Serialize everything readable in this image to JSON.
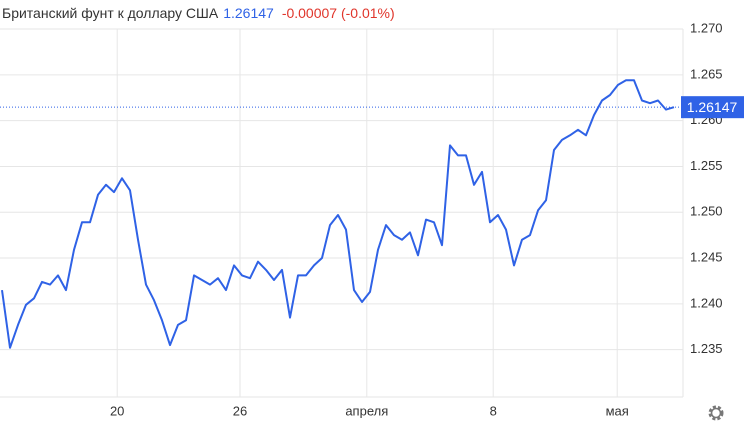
{
  "chart_data": {
    "type": "line",
    "title": "Британский фунт к доллару США",
    "last_value": 1.26147,
    "change_label": "-0.00007 (-0.01%)",
    "x": [
      0,
      1,
      2,
      3,
      4,
      5,
      6,
      7,
      8,
      9,
      10,
      11,
      12,
      13,
      14,
      15,
      16,
      17,
      18,
      19,
      20,
      21,
      22,
      23,
      24,
      25,
      26,
      27,
      28,
      29,
      30,
      31,
      32,
      33,
      34,
      35,
      36,
      37,
      38,
      39,
      40,
      41,
      42,
      43,
      44,
      45,
      46,
      47,
      48,
      49,
      50,
      51,
      52,
      53,
      54,
      55,
      56,
      57,
      58,
      59,
      60,
      61,
      62,
      63,
      64,
      65,
      66,
      67,
      68,
      69,
      70,
      71,
      72,
      73,
      74,
      75,
      76,
      77,
      78,
      79,
      80,
      81,
      82,
      83,
      84
    ],
    "series": [
      {
        "color": "#2f62e6",
        "values": [
          1.2415,
          1.2352,
          1.2377,
          1.2399,
          1.2406,
          1.2424,
          1.2421,
          1.2431,
          1.2415,
          1.2459,
          1.2489,
          1.2489,
          1.2519,
          1.253,
          1.2522,
          1.2537,
          1.2524,
          1.247,
          1.2421,
          1.2404,
          1.2382,
          1.2355,
          1.2377,
          1.2382,
          1.2431,
          1.2426,
          1.2421,
          1.2428,
          1.2415,
          1.2442,
          1.2431,
          1.2428,
          1.2446,
          1.2437,
          1.2426,
          1.2437,
          1.2385,
          1.2431,
          1.2431,
          1.2442,
          1.245,
          1.2486,
          1.2497,
          1.2481,
          1.2415,
          1.2402,
          1.2413,
          1.2459,
          1.2486,
          1.2475,
          1.247,
          1.2478,
          1.2453,
          1.2492,
          1.2489,
          1.2464,
          1.2573,
          1.2562,
          1.2562,
          1.253,
          1.2544,
          1.2489,
          1.2497,
          1.2481,
          1.2442,
          1.247,
          1.2475,
          1.2502,
          1.2513,
          1.2568,
          1.2579,
          1.2584,
          1.259,
          1.2584,
          1.2606,
          1.2622,
          1.2628,
          1.2639,
          1.2644,
          1.2644,
          1.2622,
          1.2619,
          1.2622,
          1.2612,
          1.26147
        ]
      }
    ],
    "xlim": [
      -0.25,
      85.125
    ],
    "xticks": [
      {
        "value": 14.4,
        "label": "20"
      },
      {
        "value": 29.75,
        "label": "26"
      },
      {
        "value": 45.6,
        "label": "апреля"
      },
      {
        "value": 61.4,
        "label": "8"
      },
      {
        "value": 76.9,
        "label": "мая"
      }
    ],
    "ylim": [
      1.22983,
      1.27317
    ],
    "yticks": [
      {
        "value": 1.27,
        "label": "1.270"
      },
      1.265,
      {
        "value": 1.26,
        "label": "1.260"
      },
      1.255,
      {
        "value": 1.25,
        "label": "1.250"
      },
      1.245,
      {
        "value": 1.24,
        "label": "1.240"
      },
      1.235
    ],
    "grid": true
  }
}
